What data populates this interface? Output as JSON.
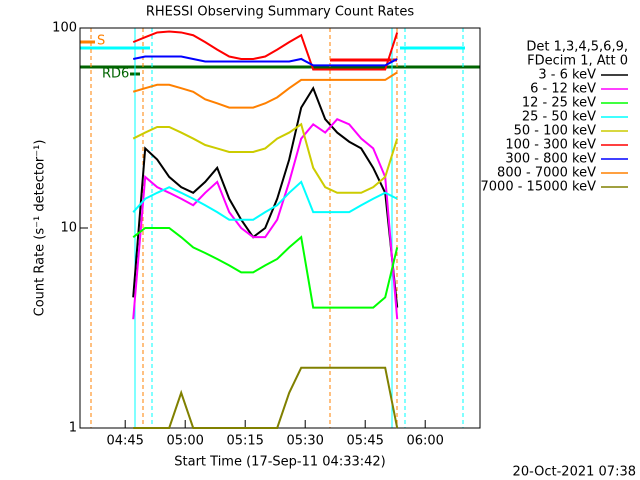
{
  "chart_data": {
    "type": "line",
    "title": "RHESSI Observing Summary Count Rates",
    "x_label": "Start Time (17-Sep-11 04:33:42)",
    "y_label": "Count Rate (s⁻¹ detector⁻¹)",
    "legend_title": [
      "Det 1,3,4,5,6,9,",
      "FDecim 1, Att 0"
    ],
    "footer": "20-Oct-2021 07:38",
    "annotations": [
      "S",
      "RD6"
    ],
    "ylog": true,
    "xlim": [
      273.7,
      373.7
    ],
    "ylim": [
      1,
      100
    ],
    "xticks": [
      {
        "value": 285,
        "label": "04:45"
      },
      {
        "value": 300,
        "label": "05:00"
      },
      {
        "value": 315,
        "label": "05:15"
      },
      {
        "value": 330,
        "label": "05:30"
      },
      {
        "value": 345,
        "label": "05:45"
      },
      {
        "value": 360,
        "label": "06:00"
      }
    ],
    "yticks": [
      1,
      10,
      100
    ],
    "legend": "right",
    "x": [
      287,
      290,
      293,
      296,
      299,
      302,
      305,
      308,
      311,
      314,
      317,
      320,
      323,
      326,
      329,
      332,
      335,
      338,
      341,
      344,
      347,
      350,
      353
    ],
    "series": [
      {
        "name": "3 - 6 keV",
        "color": "#000000",
        "values": [
          4.5,
          25,
          22,
          18,
          16,
          15,
          17,
          20,
          14,
          11,
          9,
          10,
          14,
          22,
          40,
          50,
          35,
          30,
          27,
          25,
          20,
          15,
          4
        ]
      },
      {
        "name": "6 - 12 keV",
        "color": "#ff00ff",
        "values": [
          3.5,
          18,
          16,
          15,
          14,
          13,
          15,
          17,
          12,
          10,
          9,
          9,
          11,
          17,
          28,
          33,
          30,
          35,
          33,
          28,
          25,
          18,
          3.5
        ]
      },
      {
        "name": "12 - 25 keV",
        "color": "#00ff00",
        "values": [
          9,
          10,
          10,
          10,
          9,
          8,
          7.5,
          7,
          6.5,
          6,
          6,
          6.5,
          7,
          8,
          9,
          4,
          4,
          4,
          4,
          4,
          4,
          4.5,
          8
        ]
      },
      {
        "name": "25 - 50 keV",
        "color": "#00ffff",
        "values": [
          12,
          14,
          15,
          16,
          15,
          14,
          13,
          12,
          11,
          11,
          11,
          12,
          13,
          15,
          17,
          12,
          12,
          12,
          12,
          13,
          14,
          15,
          14
        ]
      },
      {
        "name": "50 - 100 keV",
        "color": "#cccc00",
        "values": [
          28,
          30,
          32,
          32,
          30,
          28,
          26,
          25,
          24,
          24,
          24,
          25,
          28,
          30,
          33,
          20,
          16,
          15,
          15,
          15,
          16,
          18,
          28
        ]
      },
      {
        "name": "100 - 300 keV",
        "color": "#ff0000",
        "values": [
          85,
          90,
          95,
          96,
          95,
          92,
          85,
          78,
          72,
          70,
          70,
          72,
          78,
          85,
          92,
          62,
          62,
          62,
          62,
          62,
          62,
          62,
          95
        ]
      },
      {
        "name": "300 - 800 keV",
        "color": "#0000ff",
        "values": [
          70,
          72,
          72,
          72,
          72,
          70,
          68,
          68,
          68,
          68,
          68,
          68,
          68,
          68,
          70,
          65,
          65,
          65,
          65,
          65,
          65,
          65,
          70
        ]
      },
      {
        "name": "800 - 7000 keV",
        "color": "#ff8000",
        "values": [
          48,
          50,
          52,
          52,
          50,
          48,
          44,
          42,
          40,
          40,
          40,
          42,
          45,
          50,
          55,
          55,
          55,
          55,
          55,
          55,
          55,
          55,
          60
        ]
      },
      {
        "name": "7000 - 15000 keV",
        "color": "#808000",
        "values": [
          1,
          1,
          1,
          1,
          1.5,
          1,
          1,
          1,
          1,
          1,
          1,
          1,
          1,
          1.5,
          2,
          2,
          2,
          2,
          2,
          2,
          2,
          2,
          1
        ]
      }
    ]
  }
}
